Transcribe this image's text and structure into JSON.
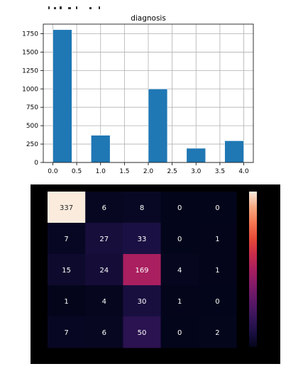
{
  "chart_data": [
    {
      "type": "bar",
      "title": "diagnosis",
      "xlabel": "",
      "ylabel": "",
      "grid": true,
      "xlim": [
        -0.2,
        4.2
      ],
      "ylim": [
        0,
        1880
      ],
      "x_ticks": [
        "0.0",
        "0.5",
        "1.0",
        "1.5",
        "2.0",
        "2.5",
        "3.0",
        "3.5",
        "4.0"
      ],
      "y_ticks": [
        "0",
        "250",
        "500",
        "750",
        "1000",
        "1250",
        "1500",
        "1750"
      ],
      "bins": [
        {
          "start": 0.0,
          "end": 0.4,
          "value": 1805
        },
        {
          "start": 0.4,
          "end": 0.8,
          "value": 0
        },
        {
          "start": 0.8,
          "end": 1.2,
          "value": 370
        },
        {
          "start": 1.2,
          "end": 1.6,
          "value": 0
        },
        {
          "start": 1.6,
          "end": 2.0,
          "value": 0
        },
        {
          "start": 2.0,
          "end": 2.4,
          "value": 999
        },
        {
          "start": 2.4,
          "end": 2.8,
          "value": 0
        },
        {
          "start": 2.8,
          "end": 3.2,
          "value": 193
        },
        {
          "start": 3.2,
          "end": 3.6,
          "value": 0
        },
        {
          "start": 3.6,
          "end": 4.0,
          "value": 295
        }
      ],
      "bar_color": "#1f77b4"
    },
    {
      "type": "heatmap",
      "title": "",
      "values": [
        [
          337,
          6,
          8,
          0,
          0
        ],
        [
          7,
          27,
          33,
          0,
          1
        ],
        [
          15,
          24,
          169,
          4,
          1
        ],
        [
          1,
          4,
          30,
          1,
          0
        ],
        [
          7,
          6,
          50,
          0,
          2
        ]
      ],
      "labels": [
        [
          "337",
          "6",
          "8",
          "0",
          "0"
        ],
        [
          "7",
          "27",
          "33",
          "0",
          "1"
        ],
        [
          "15",
          "24",
          "169",
          "4",
          "1"
        ],
        [
          "1",
          "4",
          "30",
          "1",
          "0"
        ],
        [
          "7",
          "6",
          "50",
          "0",
          "2"
        ]
      ],
      "colormap": "rocket",
      "colorbar": true
    }
  ]
}
